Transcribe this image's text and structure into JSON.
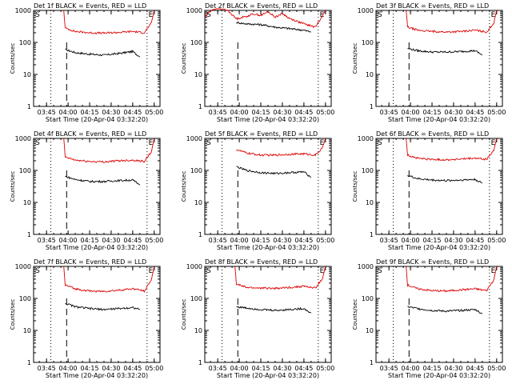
{
  "figure": {
    "panel_grid": "3x3",
    "colors": {
      "events": "#000000",
      "lld": "#dd0000",
      "axes": "#000000",
      "background": "#ffffff"
    }
  },
  "chart_data": [
    {
      "panel": 1,
      "type": "line",
      "title": "Det 1f BLACK = Events, RED = LLD",
      "xlabel": "Start Time (20-Apr-04 03:32:20)",
      "ylabel": "Counts/sec",
      "yscale": "log",
      "ylim": [
        1,
        1000
      ],
      "x_ticks": [
        "03:45",
        "04:00",
        "04:15",
        "04:30",
        "04:45",
        "05:00"
      ],
      "y_ticks": [
        "1",
        "10",
        "100",
        "1000"
      ],
      "markers": {
        "start": "S",
        "end": "E"
      },
      "series": [
        {
          "name": "Events",
          "color": "#000000",
          "x": [
            "03:58",
            "04:05",
            "04:15",
            "04:25",
            "04:35",
            "04:45",
            "04:50"
          ],
          "y": [
            60,
            48,
            43,
            40,
            45,
            52,
            35
          ]
        },
        {
          "name": "LLD",
          "color": "#dd0000",
          "x": [
            "03:57",
            "03:58",
            "04:05",
            "04:15",
            "04:25",
            "04:35",
            "04:45",
            "04:53",
            "04:58",
            "05:00"
          ],
          "y": [
            1000,
            280,
            220,
            200,
            195,
            205,
            220,
            200,
            400,
            1000
          ]
        }
      ]
    },
    {
      "panel": 2,
      "type": "line",
      "title": "Det 2f BLACK = Events, RED = LLD",
      "xlabel": "Start Time (20-Apr-04 03:32:20)",
      "ylabel": "Counts/sec",
      "yscale": "log",
      "ylim": [
        1,
        1000
      ],
      "x_ticks": [
        "03:45",
        "04:00",
        "04:15",
        "04:30",
        "04:45",
        "05:00"
      ],
      "y_ticks": [
        "1",
        "10",
        "100",
        "1000"
      ],
      "markers": {
        "start": "S",
        "end": "E"
      },
      "series": [
        {
          "name": "Events",
          "color": "#000000",
          "x": [
            "03:58",
            "04:05",
            "04:15",
            "04:25",
            "04:35",
            "04:45",
            "04:50"
          ],
          "y": [
            420,
            380,
            360,
            300,
            270,
            240,
            210
          ]
        },
        {
          "name": "LLD",
          "color": "#dd0000",
          "x": [
            "03:36",
            "03:40",
            "03:45",
            "03:52",
            "03:58",
            "04:05",
            "04:10",
            "04:15",
            "04:20",
            "04:25",
            "04:30",
            "04:35",
            "04:45",
            "04:53",
            "05:00"
          ],
          "y": [
            600,
            1000,
            1200,
            1000,
            550,
            650,
            780,
            700,
            900,
            620,
            800,
            560,
            380,
            300,
            1000
          ]
        }
      ]
    },
    {
      "panel": 3,
      "type": "line",
      "title": "Det 3f BLACK = Events, RED = LLD",
      "xlabel": "Start Time (20-Apr-04 03:32:20)",
      "ylabel": "Counts/sec",
      "yscale": "log",
      "ylim": [
        1,
        1000
      ],
      "x_ticks": [
        "03:45",
        "04:00",
        "04:15",
        "04:30",
        "04:45",
        "05:00"
      ],
      "y_ticks": [
        "1",
        "10",
        "100",
        "1000"
      ],
      "markers": {
        "start": "S",
        "end": "E"
      },
      "series": [
        {
          "name": "Events",
          "color": "#000000",
          "x": [
            "03:58",
            "04:05",
            "04:15",
            "04:25",
            "04:35",
            "04:45",
            "04:50"
          ],
          "y": [
            65,
            55,
            50,
            50,
            52,
            55,
            40
          ]
        },
        {
          "name": "LLD",
          "color": "#dd0000",
          "x": [
            "03:57",
            "03:58",
            "04:05",
            "04:15",
            "04:25",
            "04:35",
            "04:45",
            "04:53",
            "04:58",
            "05:00"
          ],
          "y": [
            1000,
            300,
            240,
            220,
            210,
            220,
            240,
            210,
            400,
            1000
          ]
        }
      ]
    },
    {
      "panel": 4,
      "type": "line",
      "title": "Det 4f BLACK = Events, RED = LLD",
      "xlabel": "Start Time (20-Apr-04 03:32:20)",
      "ylabel": "Counts/sec",
      "yscale": "log",
      "ylim": [
        1,
        1000
      ],
      "x_ticks": [
        "03:45",
        "04:00",
        "04:15",
        "04:30",
        "04:45",
        "05:00"
      ],
      "y_ticks": [
        "1",
        "10",
        "100",
        "1000"
      ],
      "markers": {
        "start": "S",
        "end": "E"
      },
      "series": [
        {
          "name": "Events",
          "color": "#000000",
          "x": [
            "03:58",
            "04:05",
            "04:15",
            "04:25",
            "04:35",
            "04:45",
            "04:50"
          ],
          "y": [
            65,
            52,
            45,
            45,
            48,
            50,
            35
          ]
        },
        {
          "name": "LLD",
          "color": "#dd0000",
          "x": [
            "03:57",
            "03:58",
            "04:05",
            "04:15",
            "04:25",
            "04:35",
            "04:45",
            "04:53",
            "04:58",
            "05:00"
          ],
          "y": [
            1000,
            260,
            210,
            190,
            185,
            200,
            210,
            190,
            380,
            1000
          ]
        }
      ]
    },
    {
      "panel": 5,
      "type": "line",
      "title": "Det 5f BLACK = Events, RED = LLD",
      "xlabel": "Start Time (20-Apr-04 03:32:20)",
      "ylabel": "Counts/sec",
      "yscale": "log",
      "ylim": [
        1,
        1000
      ],
      "x_ticks": [
        "03:45",
        "04:00",
        "04:15",
        "04:30",
        "04:45",
        "05:00"
      ],
      "y_ticks": [
        "1",
        "10",
        "100",
        "1000"
      ],
      "markers": {
        "start": "S",
        "end": "E"
      },
      "series": [
        {
          "name": "Events",
          "color": "#000000",
          "x": [
            "03:58",
            "04:05",
            "04:15",
            "04:25",
            "04:35",
            "04:45",
            "04:50"
          ],
          "y": [
            130,
            100,
            85,
            80,
            85,
            90,
            60
          ]
        },
        {
          "name": "LLD",
          "color": "#dd0000",
          "x": [
            "03:58",
            "04:05",
            "04:15",
            "04:25",
            "04:35",
            "04:45",
            "04:53",
            "04:58",
            "05:00"
          ],
          "y": [
            450,
            350,
            300,
            300,
            320,
            330,
            300,
            500,
            1000
          ]
        }
      ]
    },
    {
      "panel": 6,
      "type": "line",
      "title": "Det 6f BLACK = Events, RED = LLD",
      "xlabel": "Start Time (20-Apr-04 03:32:20)",
      "ylabel": "Counts/sec",
      "yscale": "log",
      "ylim": [
        1,
        1000
      ],
      "x_ticks": [
        "03:45",
        "04:00",
        "04:15",
        "04:30",
        "04:45",
        "05:00"
      ],
      "y_ticks": [
        "1",
        "10",
        "100",
        "1000"
      ],
      "markers": {
        "start": "S",
        "end": "E"
      },
      "series": [
        {
          "name": "Events",
          "color": "#000000",
          "x": [
            "03:58",
            "04:05",
            "04:15",
            "04:25",
            "04:35",
            "04:45",
            "04:50"
          ],
          "y": [
            70,
            55,
            50,
            48,
            50,
            52,
            40
          ]
        },
        {
          "name": "LLD",
          "color": "#dd0000",
          "x": [
            "03:57",
            "03:58",
            "04:05",
            "04:15",
            "04:25",
            "04:35",
            "04:45",
            "04:53",
            "04:58",
            "05:00"
          ],
          "y": [
            1000,
            300,
            240,
            220,
            215,
            225,
            240,
            220,
            420,
            1000
          ]
        }
      ]
    },
    {
      "panel": 7,
      "type": "line",
      "title": "Det 7f BLACK = Events, RED = LLD",
      "xlabel": "Start Time (20-Apr-04 03:32:20)",
      "ylabel": "Counts/sec",
      "yscale": "log",
      "ylim": [
        1,
        1000
      ],
      "x_ticks": [
        "03:45",
        "04:00",
        "04:15",
        "04:30",
        "04:45",
        "05:00"
      ],
      "y_ticks": [
        "1",
        "10",
        "100",
        "1000"
      ],
      "markers": {
        "start": "S",
        "end": "E"
      },
      "series": [
        {
          "name": "Events",
          "color": "#000000",
          "x": [
            "03:58",
            "04:05",
            "04:15",
            "04:25",
            "04:35",
            "04:45",
            "04:50"
          ],
          "y": [
            70,
            55,
            48,
            45,
            48,
            52,
            45
          ]
        },
        {
          "name": "LLD",
          "color": "#dd0000",
          "x": [
            "03:57",
            "03:58",
            "04:05",
            "04:15",
            "04:25",
            "04:35",
            "04:45",
            "04:53",
            "04:58",
            "05:00"
          ],
          "y": [
            1000,
            260,
            200,
            170,
            165,
            180,
            200,
            170,
            380,
            1000
          ]
        }
      ]
    },
    {
      "panel": 8,
      "type": "line",
      "title": "Det 8f BLACK = Events, RED = LLD",
      "xlabel": "Start Time (20-Apr-04 03:32:20)",
      "ylabel": "Counts/sec",
      "yscale": "log",
      "ylim": [
        1,
        1000
      ],
      "x_ticks": [
        "03:45",
        "04:00",
        "04:15",
        "04:30",
        "04:45",
        "05:00"
      ],
      "y_ticks": [
        "1",
        "10",
        "100",
        "1000"
      ],
      "markers": {
        "start": "S",
        "end": "E"
      },
      "series": [
        {
          "name": "Events",
          "color": "#000000",
          "x": [
            "03:58",
            "04:05",
            "04:15",
            "04:25",
            "04:35",
            "04:45",
            "04:50"
          ],
          "y": [
            55,
            50,
            45,
            42,
            45,
            48,
            35
          ]
        },
        {
          "name": "LLD",
          "color": "#dd0000",
          "x": [
            "03:57",
            "03:58",
            "04:05",
            "04:15",
            "04:25",
            "04:35",
            "04:45",
            "04:53",
            "04:58",
            "05:00"
          ],
          "y": [
            1000,
            280,
            220,
            210,
            205,
            220,
            240,
            210,
            420,
            1000
          ]
        }
      ]
    },
    {
      "panel": 9,
      "type": "line",
      "title": "Det 9f BLACK = Events, RED = LLD",
      "xlabel": "Start Time (20-Apr-04 03:32:20)",
      "ylabel": "Counts/sec",
      "yscale": "log",
      "ylim": [
        1,
        1000
      ],
      "x_ticks": [
        "03:45",
        "04:00",
        "04:15",
        "04:30",
        "04:45",
        "05:00"
      ],
      "y_ticks": [
        "1",
        "10",
        "100",
        "1000"
      ],
      "markers": {
        "start": "S",
        "end": "E"
      },
      "series": [
        {
          "name": "Events",
          "color": "#000000",
          "x": [
            "03:58",
            "04:05",
            "04:15",
            "04:25",
            "04:35",
            "04:45",
            "04:50"
          ],
          "y": [
            55,
            48,
            42,
            40,
            42,
            45,
            33
          ]
        },
        {
          "name": "LLD",
          "color": "#dd0000",
          "x": [
            "03:57",
            "03:58",
            "04:05",
            "04:15",
            "04:25",
            "04:35",
            "04:45",
            "04:53",
            "04:58",
            "05:00"
          ],
          "y": [
            1000,
            260,
            200,
            175,
            170,
            185,
            200,
            175,
            380,
            1000
          ]
        }
      ]
    }
  ]
}
